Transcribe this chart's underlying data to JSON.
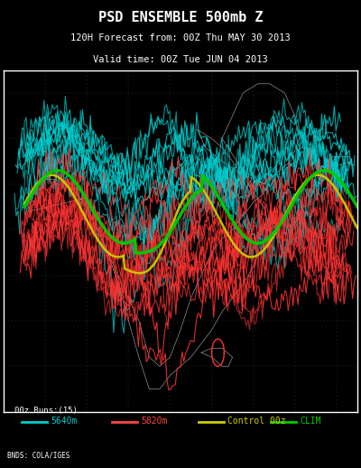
{
  "title_line1": "PSD ENSEMBLE 500mb Z",
  "title_line2": "120H Forecast from: 00Z Thu MAY 30 2013",
  "title_line3": "Valid time: 00Z Tue JUN 04 2013",
  "legend_label": "00z Runs:(15)",
  "legend_items": [
    {
      "label": "5640m",
      "color": "#00CCCC"
    },
    {
      "label": "5820m",
      "color": "#FF4444"
    },
    {
      "label": "Control 00z",
      "color": "#CCCC00"
    },
    {
      "label": "CLIM",
      "color": "#00CC00"
    }
  ],
  "credit": "BNDS: COLA/IGES",
  "bg_color": "#000000",
  "title_color": "#FFFFFF",
  "map_border_color": "#FFFFFF"
}
